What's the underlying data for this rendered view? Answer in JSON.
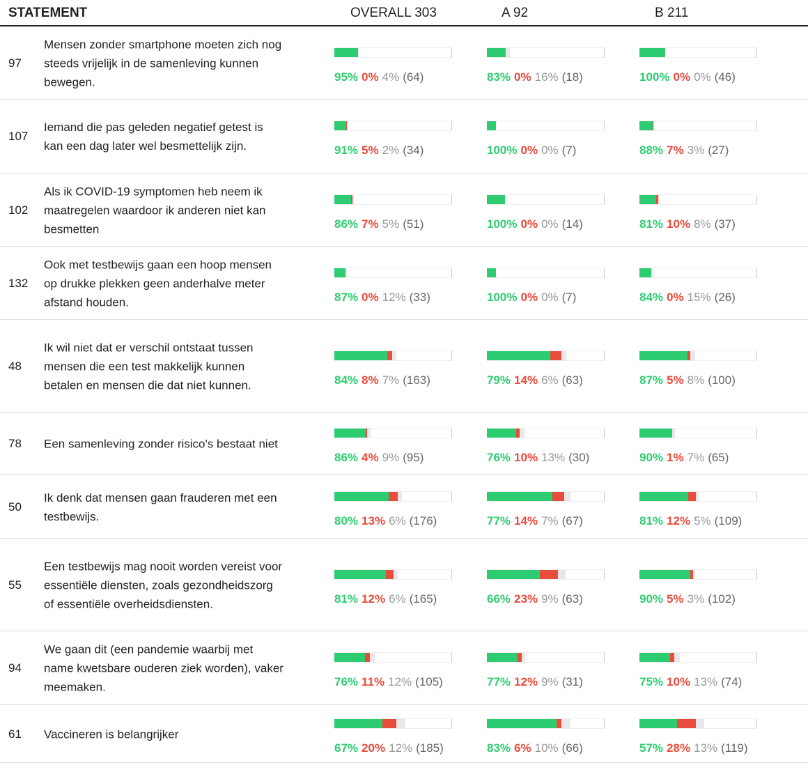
{
  "header": {
    "statement": "STATEMENT",
    "groups": [
      {
        "label": "OVERALL",
        "total": 303
      },
      {
        "label": "A",
        "total": 92
      },
      {
        "label": "B",
        "total": 211
      }
    ]
  },
  "rows": [
    {
      "id": 97,
      "text": "Mensen zonder smartphone moeten zich nog steeds vrijelijk in de samenleving kunnen bewegen.",
      "groups": [
        {
          "agree": 95,
          "agree_label": "95%",
          "disagree": 0,
          "disagree_label": "0%",
          "pass": 4,
          "pass_label": "4%",
          "votes": 64,
          "votes_label": "(64)"
        },
        {
          "agree": 83,
          "agree_label": "83%",
          "disagree": 0,
          "disagree_label": "0%",
          "pass": 16,
          "pass_label": "16%",
          "votes": 18,
          "votes_label": "(18)"
        },
        {
          "agree": 100,
          "agree_label": "100%",
          "disagree": 0,
          "disagree_label": "0%",
          "pass": 0,
          "pass_label": "0%",
          "votes": 46,
          "votes_label": "(46)"
        }
      ]
    },
    {
      "id": 107,
      "text": "Iemand die pas geleden negatief getest is kan een dag later wel besmettelijk zijn.",
      "groups": [
        {
          "agree": 91,
          "agree_label": "91%",
          "disagree": 5,
          "disagree_label": "5%",
          "pass": 2,
          "pass_label": "2%",
          "votes": 34,
          "votes_label": "(34)"
        },
        {
          "agree": 100,
          "agree_label": "100%",
          "disagree": 0,
          "disagree_label": "0%",
          "pass": 0,
          "pass_label": "0%",
          "votes": 7,
          "votes_label": "(7)"
        },
        {
          "agree": 88,
          "agree_label": "88%",
          "disagree": 7,
          "disagree_label": "7%",
          "pass": 3,
          "pass_label": "3%",
          "votes": 27,
          "votes_label": "(27)"
        }
      ]
    },
    {
      "id": 102,
      "text": "Als ik COVID-19 symptomen heb neem ik maatregelen waardoor ik anderen niet kan besmetten",
      "groups": [
        {
          "agree": 86,
          "agree_label": "86%",
          "disagree": 7,
          "disagree_label": "7%",
          "pass": 5,
          "pass_label": "5%",
          "votes": 51,
          "votes_label": "(51)"
        },
        {
          "agree": 100,
          "agree_label": "100%",
          "disagree": 0,
          "disagree_label": "0%",
          "pass": 0,
          "pass_label": "0%",
          "votes": 14,
          "votes_label": "(14)"
        },
        {
          "agree": 81,
          "agree_label": "81%",
          "disagree": 10,
          "disagree_label": "10%",
          "pass": 8,
          "pass_label": "8%",
          "votes": 37,
          "votes_label": "(37)"
        }
      ]
    },
    {
      "id": 132,
      "text": "Ook met testbewijs gaan een hoop mensen op drukke plekken geen anderhalve meter afstand houden.",
      "groups": [
        {
          "agree": 87,
          "agree_label": "87%",
          "disagree": 0,
          "disagree_label": "0%",
          "pass": 12,
          "pass_label": "12%",
          "votes": 33,
          "votes_label": "(33)"
        },
        {
          "agree": 100,
          "agree_label": "100%",
          "disagree": 0,
          "disagree_label": "0%",
          "pass": 0,
          "pass_label": "0%",
          "votes": 7,
          "votes_label": "(7)"
        },
        {
          "agree": 84,
          "agree_label": "84%",
          "disagree": 0,
          "disagree_label": "0%",
          "pass": 15,
          "pass_label": "15%",
          "votes": 26,
          "votes_label": "(26)"
        }
      ]
    },
    {
      "id": 48,
      "text": "Ik wil niet dat er verschil ontstaat tussen mensen die een test makkelijk kunnen betalen en mensen die dat niet kunnen.",
      "groups": [
        {
          "agree": 84,
          "agree_label": "84%",
          "disagree": 8,
          "disagree_label": "8%",
          "pass": 7,
          "pass_label": "7%",
          "votes": 163,
          "votes_label": "(163)"
        },
        {
          "agree": 79,
          "agree_label": "79%",
          "disagree": 14,
          "disagree_label": "14%",
          "pass": 6,
          "pass_label": "6%",
          "votes": 63,
          "votes_label": "(63)"
        },
        {
          "agree": 87,
          "agree_label": "87%",
          "disagree": 5,
          "disagree_label": "5%",
          "pass": 8,
          "pass_label": "8%",
          "votes": 100,
          "votes_label": "(100)"
        }
      ]
    },
    {
      "id": 78,
      "text": "Een samenleving zonder risico's bestaat niet",
      "groups": [
        {
          "agree": 86,
          "agree_label": "86%",
          "disagree": 4,
          "disagree_label": "4%",
          "pass": 9,
          "pass_label": "9%",
          "votes": 95,
          "votes_label": "(95)"
        },
        {
          "agree": 76,
          "agree_label": "76%",
          "disagree": 10,
          "disagree_label": "10%",
          "pass": 13,
          "pass_label": "13%",
          "votes": 30,
          "votes_label": "(30)"
        },
        {
          "agree": 90,
          "agree_label": "90%",
          "disagree": 1,
          "disagree_label": "1%",
          "pass": 7,
          "pass_label": "7%",
          "votes": 65,
          "votes_label": "(65)"
        }
      ]
    },
    {
      "id": 50,
      "text": "Ik denk dat mensen gaan frauderen met een testbewijs.",
      "groups": [
        {
          "agree": 80,
          "agree_label": "80%",
          "disagree": 13,
          "disagree_label": "13%",
          "pass": 6,
          "pass_label": "6%",
          "votes": 176,
          "votes_label": "(176)"
        },
        {
          "agree": 77,
          "agree_label": "77%",
          "disagree": 14,
          "disagree_label": "14%",
          "pass": 7,
          "pass_label": "7%",
          "votes": 67,
          "votes_label": "(67)"
        },
        {
          "agree": 81,
          "agree_label": "81%",
          "disagree": 12,
          "disagree_label": "12%",
          "pass": 5,
          "pass_label": "5%",
          "votes": 109,
          "votes_label": "(109)"
        }
      ]
    },
    {
      "id": 55,
      "text": "Een testbewijs mag nooit worden vereist voor essentiële diensten, zoals gezondheidszorg of essentiële overheidsdiensten.",
      "groups": [
        {
          "agree": 81,
          "agree_label": "81%",
          "disagree": 12,
          "disagree_label": "12%",
          "pass": 6,
          "pass_label": "6%",
          "votes": 165,
          "votes_label": "(165)"
        },
        {
          "agree": 66,
          "agree_label": "66%",
          "disagree": 23,
          "disagree_label": "23%",
          "pass": 9,
          "pass_label": "9%",
          "votes": 63,
          "votes_label": "(63)"
        },
        {
          "agree": 90,
          "agree_label": "90%",
          "disagree": 5,
          "disagree_label": "5%",
          "pass": 3,
          "pass_label": "3%",
          "votes": 102,
          "votes_label": "(102)"
        }
      ]
    },
    {
      "id": 94,
      "text": "We gaan dit (een pandemie waarbij met name kwetsbare ouderen ziek worden), vaker meemaken.",
      "groups": [
        {
          "agree": 76,
          "agree_label": "76%",
          "disagree": 11,
          "disagree_label": "11%",
          "pass": 12,
          "pass_label": "12%",
          "votes": 105,
          "votes_label": "(105)"
        },
        {
          "agree": 77,
          "agree_label": "77%",
          "disagree": 12,
          "disagree_label": "12%",
          "pass": 9,
          "pass_label": "9%",
          "votes": 31,
          "votes_label": "(31)"
        },
        {
          "agree": 75,
          "agree_label": "75%",
          "disagree": 10,
          "disagree_label": "10%",
          "pass": 13,
          "pass_label": "13%",
          "votes": 74,
          "votes_label": "(74)"
        }
      ]
    },
    {
      "id": 61,
      "text": "Vaccineren is belangrijker",
      "groups": [
        {
          "agree": 67,
          "agree_label": "67%",
          "disagree": 20,
          "disagree_label": "20%",
          "pass": 12,
          "pass_label": "12%",
          "votes": 185,
          "votes_label": "(185)"
        },
        {
          "agree": 83,
          "agree_label": "83%",
          "disagree": 6,
          "disagree_label": "6%",
          "pass": 10,
          "pass_label": "10%",
          "votes": 66,
          "votes_label": "(66)"
        },
        {
          "agree": 57,
          "agree_label": "57%",
          "disagree": 28,
          "disagree_label": "28%",
          "pass": 13,
          "pass_label": "13%",
          "votes": 119,
          "votes_label": "(119)"
        }
      ]
    }
  ]
}
